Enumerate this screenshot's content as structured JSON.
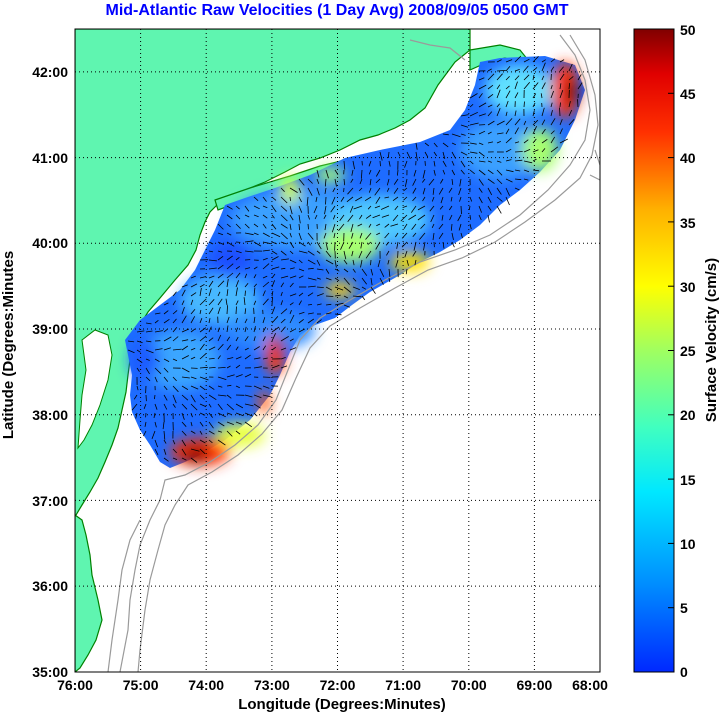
{
  "title": "Mid-Atlantic Raw Velocities (1 Day Avg) 2008/09/05 0500 GMT",
  "xlabel": "Longitude (Degrees:Minutes)",
  "ylabel": "Latitude (Degrees:Minutes",
  "colorbar": {
    "label": "Surface Velocity (cm/s)",
    "ticks": [
      "50",
      "45",
      "40",
      "35",
      "30",
      "25",
      "20",
      "15",
      "10",
      "5",
      "0"
    ],
    "range": [
      0,
      50
    ],
    "colormap": "jet"
  },
  "x_ticks": [
    "76:00",
    "75:00",
    "74:00",
    "73:00",
    "72:00",
    "71:00",
    "70:00",
    "69:00",
    "68:00"
  ],
  "y_ticks": [
    "42:00",
    "41:00",
    "40:00",
    "39:00",
    "38:00",
    "37:00",
    "36:00",
    "35:00"
  ],
  "map": {
    "lon_range": [
      -76,
      -68
    ],
    "lat_range": [
      35,
      42.5
    ],
    "grid": "dotted",
    "land_color": "#5ff5b0",
    "coast_color": "#008000",
    "bathymetry_color": "#9a9a9a"
  }
}
